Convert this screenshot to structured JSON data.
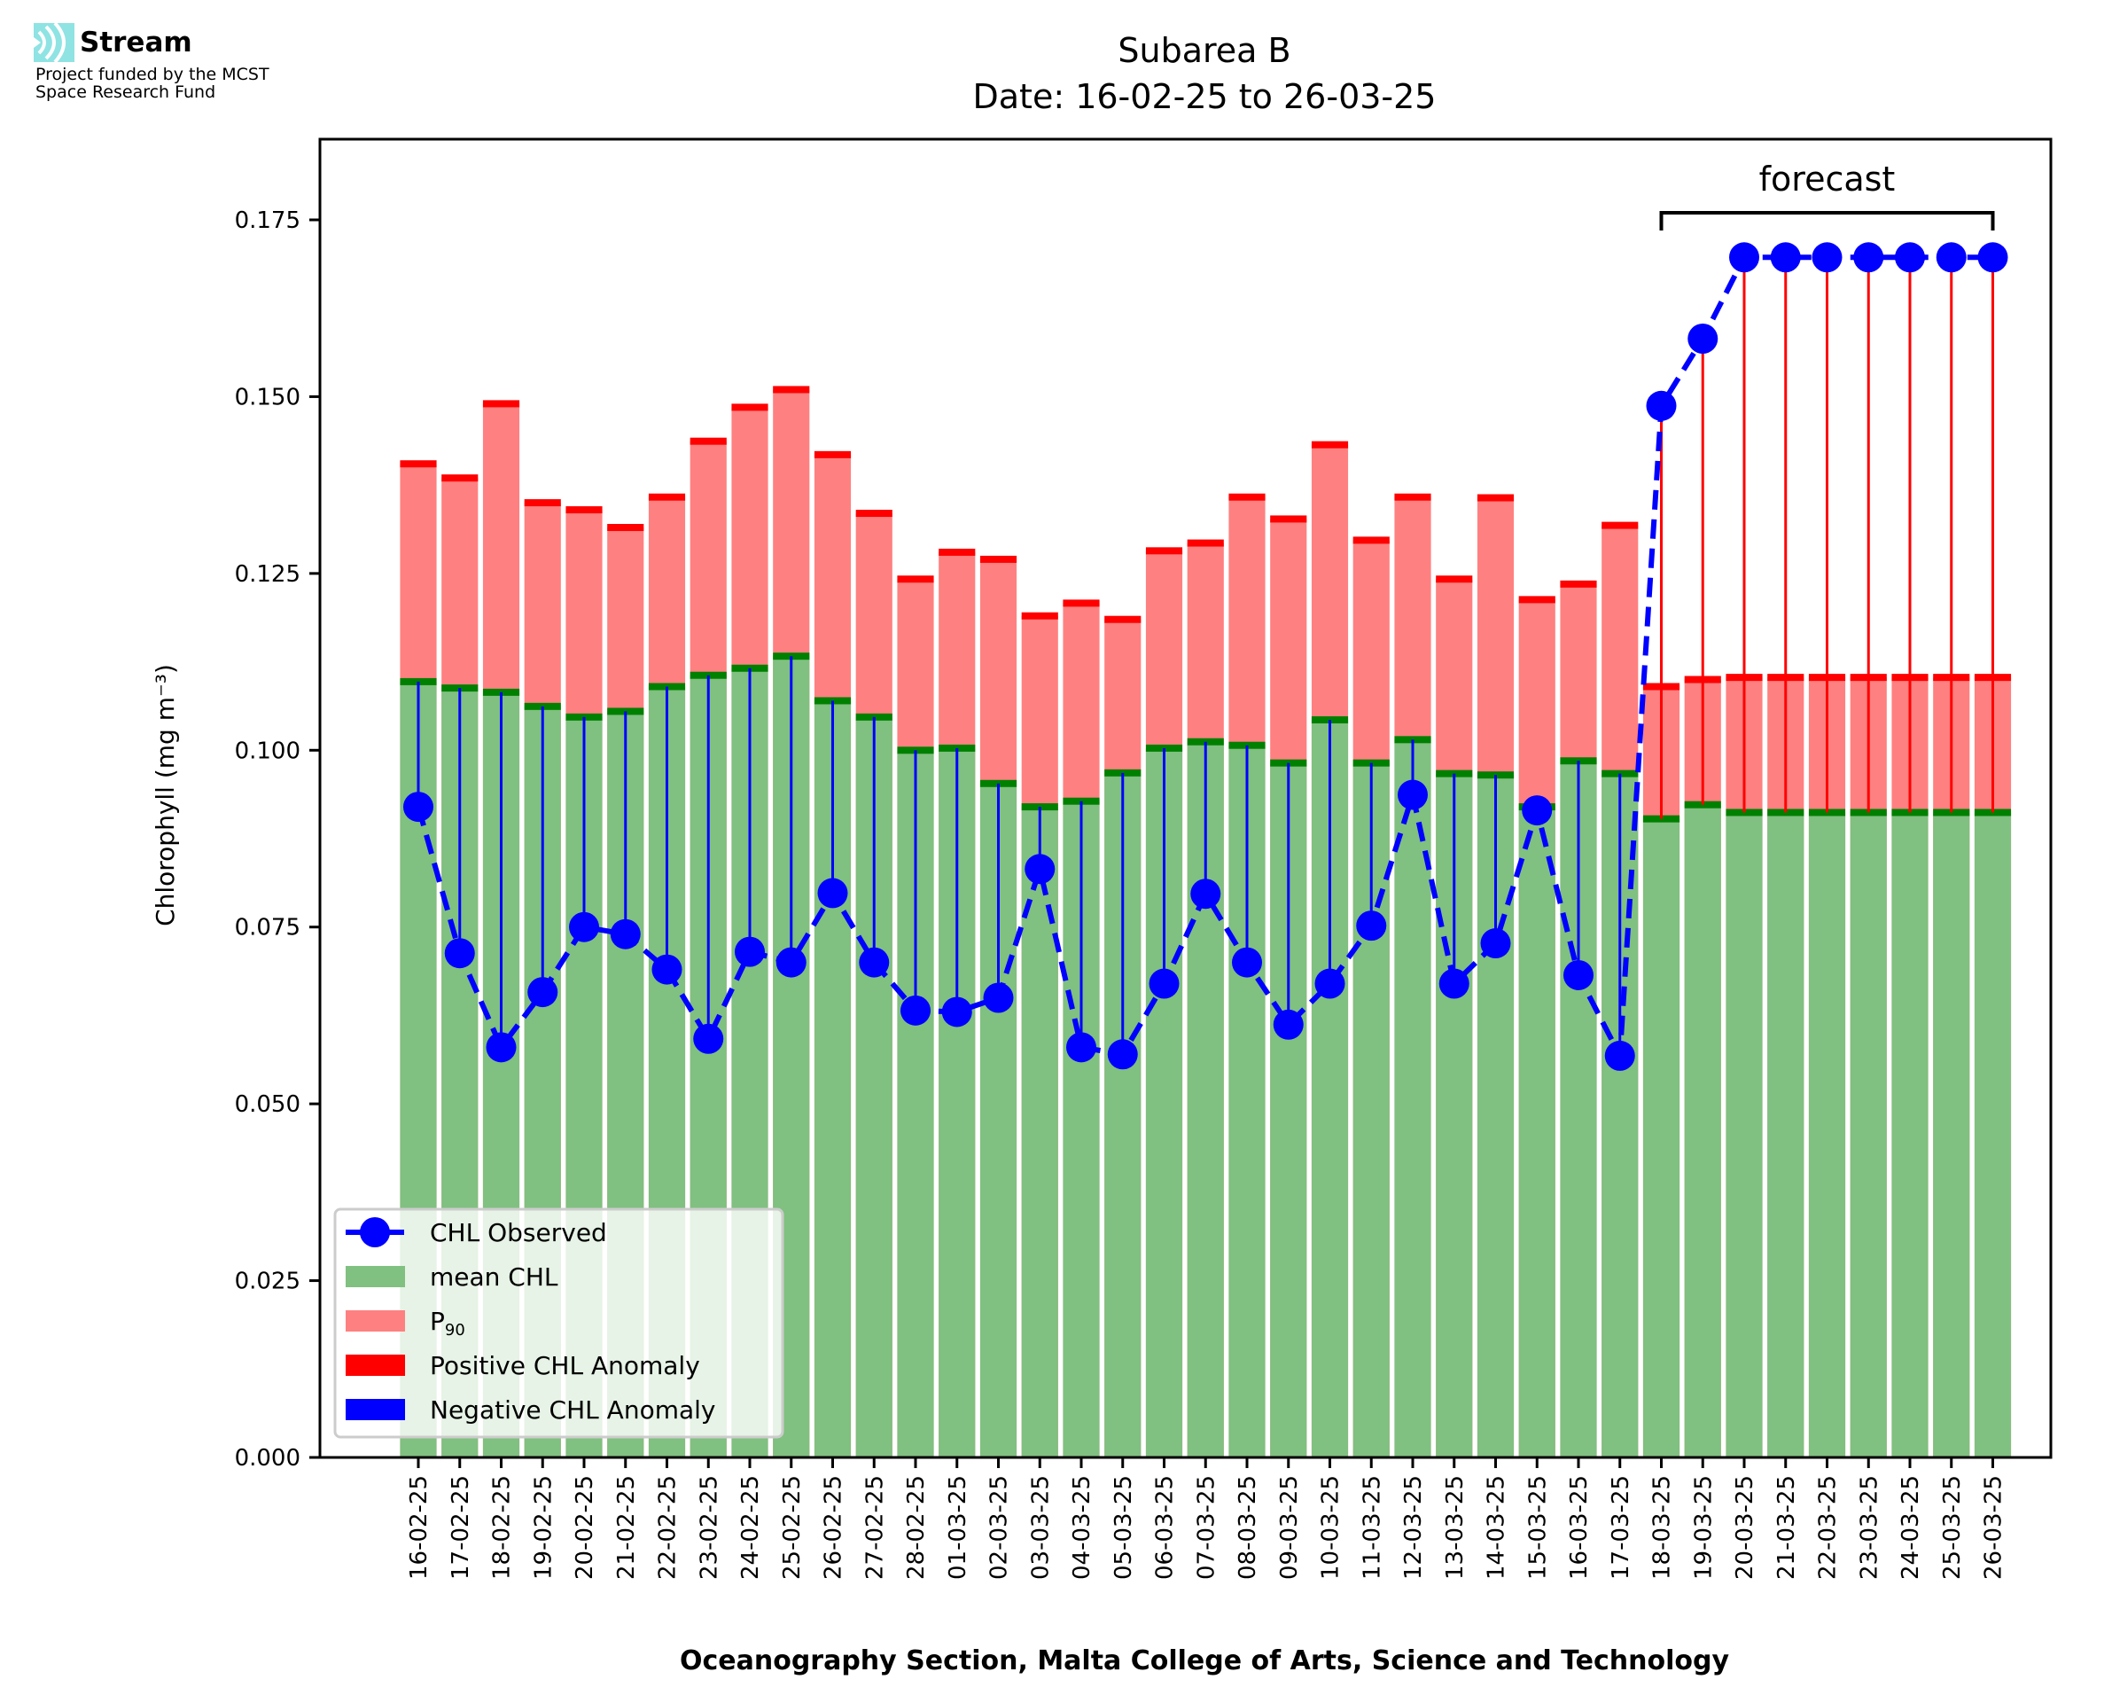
{
  "logo": {
    "name": "Stream",
    "line1": "Project funded by the MCST",
    "line2": "Space Research Fund",
    "color": "#7fd8d8"
  },
  "chart_data": {
    "type": "bar",
    "title": "Subarea B",
    "subtitle": "Date: 16-02-25 to 26-03-25",
    "xlabel": "Oceanography Section, Malta College of Arts, Science and Technology",
    "ylabel": "Chlorophyll (mg m⁻³)",
    "ylim": [
      0,
      0.186
    ],
    "yticks": [
      "0.000",
      "0.025",
      "0.050",
      "0.075",
      "0.100",
      "0.125",
      "0.150",
      "0.175"
    ],
    "ytick_values": [
      0,
      0.025,
      0.05,
      0.075,
      0.1,
      0.125,
      0.15,
      0.175
    ],
    "grid": false,
    "legend_position": "lower-left",
    "annotation": {
      "text": "forecast",
      "start": "18-03-25",
      "end": "26-03-25"
    },
    "categories": [
      "16-02-25",
      "17-02-25",
      "18-02-25",
      "19-02-25",
      "20-02-25",
      "21-02-25",
      "22-02-25",
      "23-02-25",
      "24-02-25",
      "25-02-25",
      "26-02-25",
      "27-02-25",
      "28-02-25",
      "01-03-25",
      "02-03-25",
      "03-03-25",
      "04-03-25",
      "05-03-25",
      "06-03-25",
      "07-03-25",
      "08-03-25",
      "09-03-25",
      "10-03-25",
      "11-03-25",
      "12-03-25",
      "13-03-25",
      "14-03-25",
      "15-03-25",
      "16-03-25",
      "17-03-25",
      "18-03-25",
      "19-03-25",
      "20-03-25",
      "21-03-25",
      "22-03-25",
      "23-03-25",
      "24-03-25",
      "25-03-25",
      "26-03-25"
    ],
    "series": [
      {
        "name": "CHL Observed",
        "type": "line",
        "color": "#0000ff",
        "values": [
          0.092,
          0.0713,
          0.058,
          0.0658,
          0.075,
          0.074,
          0.069,
          0.0592,
          0.0715,
          0.07,
          0.0798,
          0.07,
          0.0632,
          0.063,
          0.065,
          0.0832,
          0.058,
          0.057,
          0.067,
          0.0797,
          0.07,
          0.0612,
          0.067,
          0.0752,
          0.0937,
          0.067,
          0.0727,
          0.0915,
          0.0682,
          0.0568,
          0.1487,
          0.1582,
          0.1697,
          0.1697,
          0.1697,
          0.1697,
          0.1697,
          0.1697,
          0.1697
        ]
      },
      {
        "name": "mean CHL",
        "type": "bar",
        "color": "#80c080",
        "edge_color": "#008000",
        "values": [
          0.1097,
          0.1088,
          0.1082,
          0.1062,
          0.1047,
          0.1055,
          0.109,
          0.1106,
          0.1116,
          0.1133,
          0.107,
          0.1047,
          0.1,
          0.1003,
          0.0953,
          0.092,
          0.0928,
          0.0968,
          0.1003,
          0.1012,
          0.1007,
          0.0982,
          0.1043,
          0.0982,
          0.1015,
          0.0967,
          0.0965,
          0.092,
          0.0985,
          0.0967,
          0.0903,
          0.0923,
          0.0912,
          0.0912,
          0.0912,
          0.0912,
          0.0912,
          0.0912,
          0.0912
        ]
      },
      {
        "name": "P₉₀",
        "type": "bar",
        "color": "#ff8080",
        "edge_color": "#ff0000",
        "values": [
          0.1405,
          0.1385,
          0.149,
          0.135,
          0.134,
          0.1315,
          0.1358,
          0.1437,
          0.1485,
          0.151,
          0.1418,
          0.1335,
          0.1242,
          0.128,
          0.127,
          0.119,
          0.1208,
          0.1185,
          0.1282,
          0.1293,
          0.1358,
          0.1327,
          0.1432,
          0.1297,
          0.1358,
          0.1242,
          0.1357,
          0.1213,
          0.1235,
          0.1318,
          0.109,
          0.11,
          0.1103,
          0.1103,
          0.1103,
          0.1103,
          0.1103,
          0.1103,
          0.1103
        ]
      }
    ],
    "legend": [
      {
        "label": "CHL Observed",
        "kind": "line-marker",
        "color": "#0000ff"
      },
      {
        "label": "mean CHL",
        "kind": "patch",
        "color": "#80c080"
      },
      {
        "label": "P",
        "sub": "90",
        "kind": "patch",
        "color": "#ff8080"
      },
      {
        "label": "Positive CHL Anomaly",
        "kind": "patch",
        "color": "#ff0000"
      },
      {
        "label": "Negative CHL Anomaly",
        "kind": "patch",
        "color": "#0000ff"
      }
    ]
  }
}
